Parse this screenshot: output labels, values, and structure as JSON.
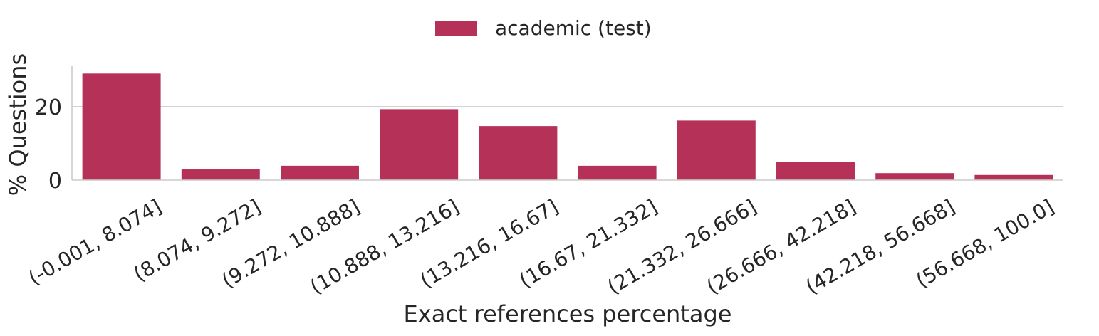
{
  "chart_data": {
    "type": "bar",
    "title": "",
    "xlabel": "Exact references percentage",
    "ylabel": "% Questions",
    "categories": [
      "(-0.001, 8.074]",
      "(8.074, 9.272]",
      "(9.272, 10.888]",
      "(10.888, 13.216]",
      "(13.216, 16.67]",
      "(16.67, 21.332]",
      "(21.332, 26.666]",
      "(26.666, 42.218]",
      "(42.218, 56.668]",
      "(56.668, 100.0]"
    ],
    "series": [
      {
        "name": "academic (test)",
        "color": "#b53157",
        "values": [
          29.0,
          2.9,
          3.9,
          19.3,
          14.7,
          3.9,
          16.2,
          4.9,
          1.9,
          1.4
        ]
      }
    ],
    "ylim": [
      0,
      31
    ],
    "yticks": [
      0,
      20
    ],
    "grid": "y",
    "legend_position": "top-center"
  }
}
